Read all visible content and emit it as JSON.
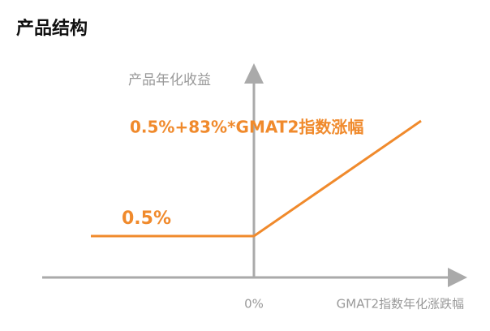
{
  "header": {
    "title": "产品结构"
  },
  "diagram": {
    "y_axis_label": "产品年化收益",
    "formula_label": "0.5%+83%*GMAT2指数涨幅",
    "floor_label": "0.5%",
    "origin_label": "0%",
    "x_axis_label": "GMAT2指数年化涨跌幅"
  }
}
